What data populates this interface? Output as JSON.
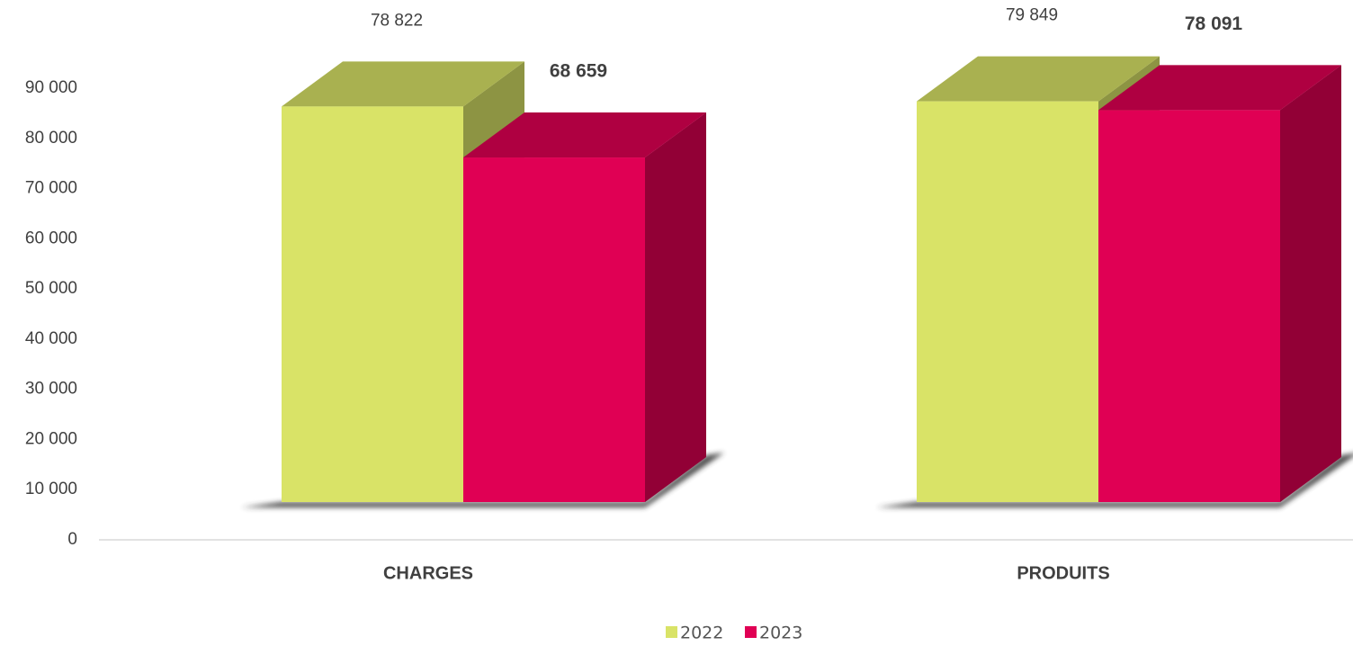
{
  "chart_data": {
    "type": "bar3d",
    "categories": [
      "CHARGES",
      "PRODUITS"
    ],
    "series": [
      {
        "name": "2022",
        "color": "#d9e367",
        "values": [
          78822,
          79849
        ],
        "value_labels": [
          "78 822",
          "79 849"
        ]
      },
      {
        "name": "2023",
        "color": "#e00054",
        "values": [
          68659,
          78091
        ],
        "value_labels": [
          "68 659",
          "78 091"
        ]
      }
    ],
    "ylim": [
      0,
      90000
    ],
    "yticks": [
      0,
      {
        "value": 10000,
        "label": "10 000"
      },
      {
        "value": 20000,
        "label": "20 000"
      },
      {
        "value": 30000,
        "label": "30 000"
      },
      {
        "value": 40000,
        "label": "40 000"
      },
      {
        "value": 50000,
        "label": "50 000"
      },
      {
        "value": 60000,
        "label": "60 000"
      },
      {
        "value": 70000,
        "label": "70 000"
      },
      {
        "value": 80000,
        "label": "80 000"
      },
      {
        "value": 90000,
        "label": "90 000"
      }
    ],
    "legend": "bottom"
  }
}
